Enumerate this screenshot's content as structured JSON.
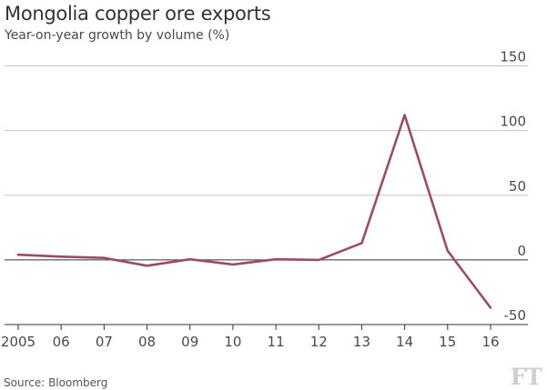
{
  "title": "Mongolia copper ore exports",
  "subtitle": "Year-on-year growth by volume (%)",
  "source": "Source: Bloomberg",
  "brand": "FT",
  "colors": {
    "line": "#9e4a66",
    "grid": "#c9c2b8",
    "zero_line": "#333333"
  },
  "chart_data": {
    "type": "line",
    "title": "Mongolia copper ore exports",
    "subtitle": "Year-on-year growth by volume (%)",
    "x_tick_labels": [
      "2005",
      "06",
      "07",
      "08",
      "09",
      "10",
      "11",
      "12",
      "13",
      "14",
      "15",
      "16"
    ],
    "x": [
      2005,
      2006,
      2007,
      2008,
      2009,
      2010,
      2011,
      2012,
      2013,
      2014,
      2015,
      2016
    ],
    "y_ticks": [
      150,
      100,
      50,
      0,
      -50
    ],
    "y_tick_labels": [
      "150",
      "100",
      "50",
      "0",
      "-50"
    ],
    "ylim": [
      -50,
      150
    ],
    "grid": true,
    "series": [
      {
        "values": [
          4,
          2.5,
          1.5,
          -4.5,
          0.5,
          -3.5,
          0.5,
          0,
          13,
          112,
          7,
          -37
        ]
      }
    ]
  }
}
